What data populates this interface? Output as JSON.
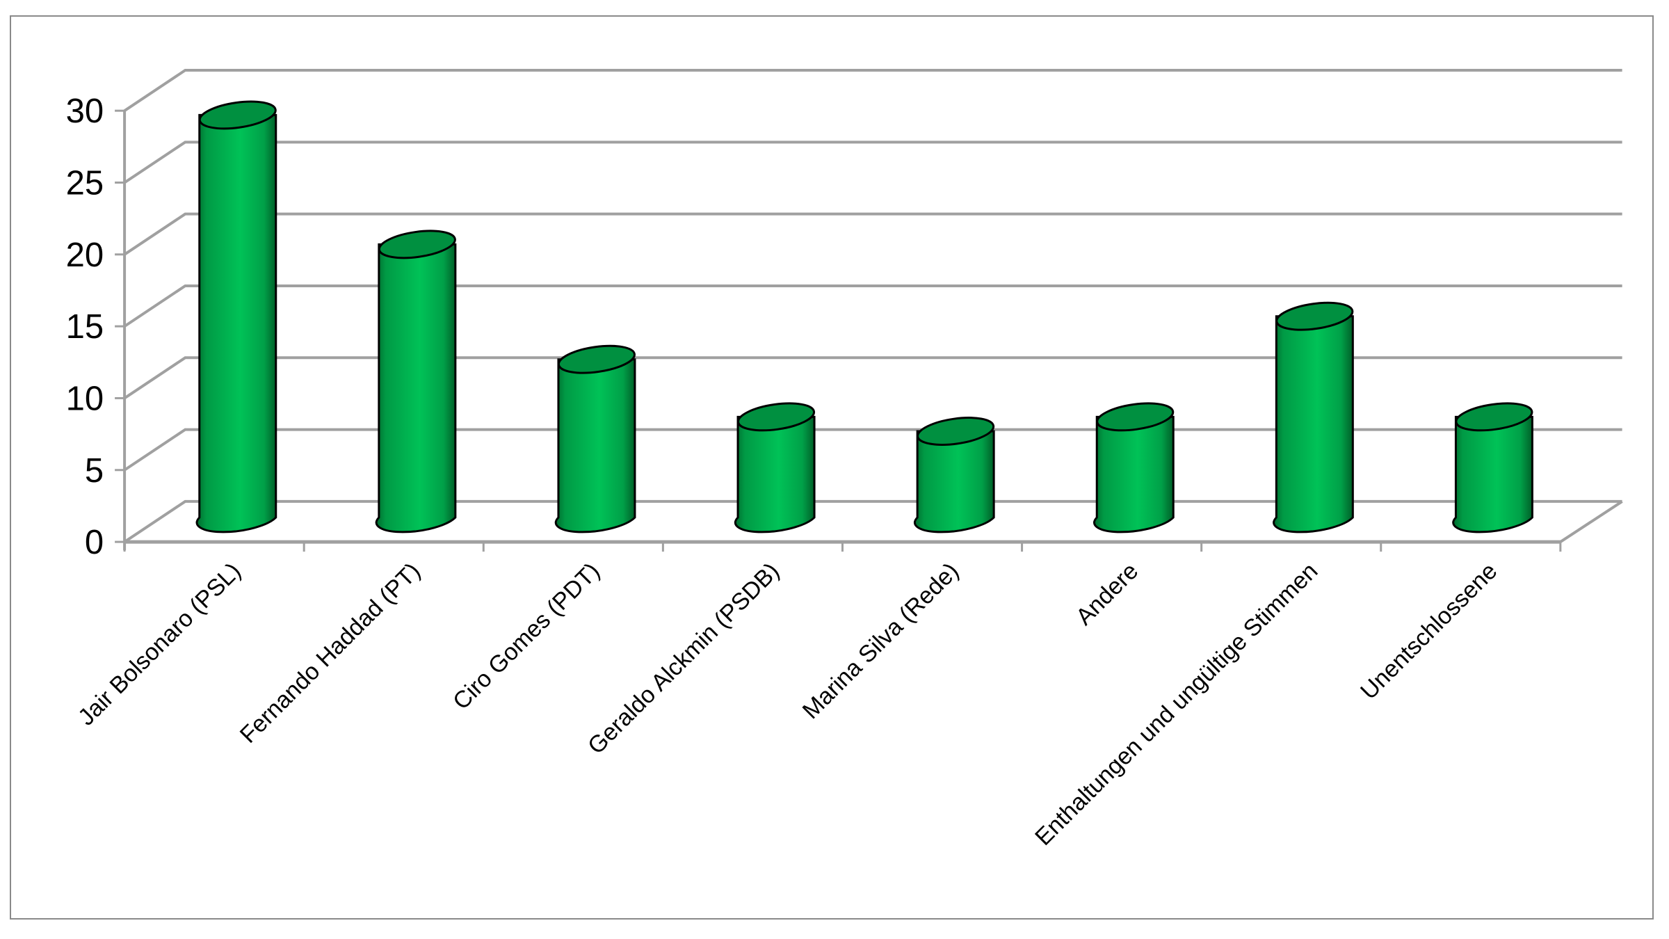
{
  "chart_data": {
    "type": "bar",
    "style": "3d-cylinder",
    "title": "",
    "xlabel": "",
    "ylabel": "",
    "categories": [
      "Jair Bolsonaro (PSL)",
      "Fernando Haddad (PT)",
      "Ciro Gomes (PDT)",
      "Geraldo Alckmin (PSDB)",
      "Marina Silva (Rede)",
      "Andere",
      "Enthaltungen und ungültige Stimmen",
      "Unentschlossene"
    ],
    "values": [
      28,
      19,
      11,
      7,
      6,
      7,
      14,
      7
    ],
    "ylim": [
      0,
      30
    ],
    "yticks": [
      "0",
      "5",
      "10",
      "15",
      "20",
      "25",
      "30"
    ],
    "grid": true,
    "legend": null,
    "colors": {
      "bar": "#00b050",
      "bar_dark": "#007a35",
      "bar_top": "#009040",
      "outline": "#000000",
      "grid": "#a0a0a0",
      "frame": "#808080"
    }
  }
}
